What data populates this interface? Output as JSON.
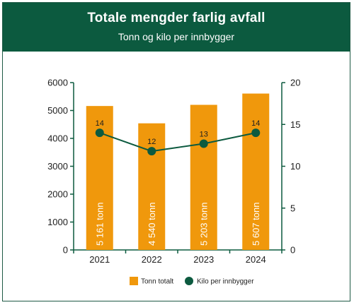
{
  "header": {
    "title": "Totale mengder farlig avfall",
    "subtitle": "Tonn og kilo per innbygger"
  },
  "colors": {
    "header_bg": "#0c5a3f",
    "bar": "#f0980c",
    "line": "#0c5a3f",
    "axis": "#0c5a3f"
  },
  "chart_data": {
    "type": "bar",
    "title": "Totale mengder farlig avfall",
    "subtitle": "Tonn og kilo per innbygger",
    "categories": [
      "2021",
      "2022",
      "2023",
      "2024"
    ],
    "y_left": {
      "ylim": [
        0,
        6000
      ],
      "ticks": [
        "0",
        "1000",
        "2000",
        "3000",
        "4000",
        "5000",
        "6000"
      ]
    },
    "y_right": {
      "ylim": [
        0,
        20
      ],
      "ticks": [
        "0",
        "5",
        "10",
        "15",
        "20"
      ]
    },
    "series": [
      {
        "name": "Tonn totalt",
        "type": "bar",
        "axis": "left",
        "values": [
          5161,
          4540,
          5203,
          5607
        ],
        "labels": [
          "5 161 tonn",
          "4 540 tonn",
          "5 203 tonn",
          "5 607 tonn"
        ]
      },
      {
        "name": "Kilo per innbygger",
        "type": "line",
        "axis": "right",
        "values": [
          14,
          11.8,
          12.7,
          14
        ],
        "labels": [
          "14",
          "12",
          "13",
          "14"
        ]
      }
    ],
    "legend": [
      "Tonn totalt",
      "Kilo per innbygger"
    ],
    "legend_position": "bottom",
    "grid": false
  }
}
